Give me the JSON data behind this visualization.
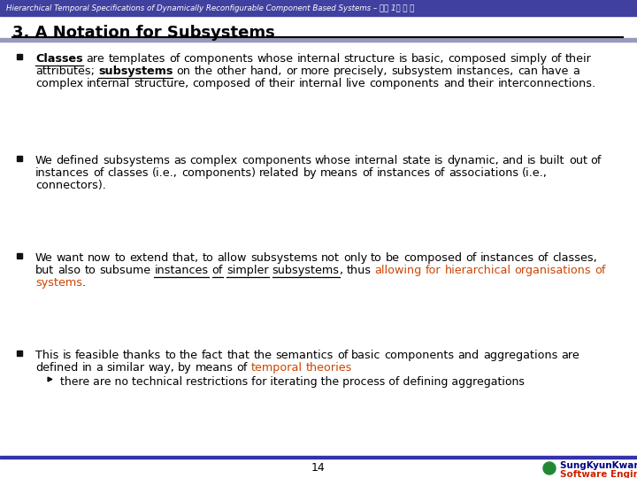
{
  "header_text": "Hierarchical Temporal Specifications of Dynamically Reconfigurable Component Based Systems – 석사 1기 헀 석",
  "header_bg": "#4040a0",
  "header_text_color": "#ffffff",
  "title": "3. A Notation for Subsystems",
  "bg_color": "#ffffff",
  "footer_page": "14",
  "footer_univ": "SungKyunKwan University",
  "footer_lab": "Software Engineering Lab.",
  "footer_univ_color": "#000080",
  "footer_lab_color": "#cc2200",
  "bullet1_parts": [
    {
      "text": "Classes",
      "bold": true,
      "underline": true,
      "color": "#000000"
    },
    {
      "text": " are templates of components whose internal structure is basic, composed simply of their attributes; ",
      "bold": false,
      "underline": false,
      "color": "#000000"
    },
    {
      "text": "subsystems",
      "bold": true,
      "underline": true,
      "color": "#000000"
    },
    {
      "text": " on the other hand, or more precisely, subsystem instances, can have a complex internal structure, composed of their internal live components and their interconnections.",
      "bold": false,
      "underline": false,
      "color": "#000000"
    }
  ],
  "bullet2_parts": [
    {
      "text": "We defined subsystems as complex components whose internal state is dynamic, and is built out of instances of classes (i.e., components) related by means of instances of associations (i.e., connectors).",
      "bold": false,
      "underline": false,
      "color": "#000000"
    }
  ],
  "bullet3_parts": [
    {
      "text": "We want now to extend that, to allow subsystems not only to be composed of instances of classes, but also to subsume ",
      "bold": false,
      "underline": false,
      "color": "#000000"
    },
    {
      "text": "instances of simpler subsystems",
      "bold": false,
      "underline": true,
      "color": "#000000"
    },
    {
      "text": ", thus ",
      "bold": false,
      "underline": false,
      "color": "#000000"
    },
    {
      "text": "allowing for hierarchical organisations of systems",
      "bold": false,
      "underline": false,
      "color": "#cc4400"
    },
    {
      "text": ".",
      "bold": false,
      "underline": false,
      "color": "#000000"
    }
  ],
  "bullet4_parts": [
    {
      "text": "This is feasible thanks to the fact that the semantics of basic components and aggregations are defined in a similar way, by means of ",
      "bold": false,
      "underline": false,
      "color": "#000000"
    },
    {
      "text": "temporal theories",
      "bold": false,
      "underline": false,
      "color": "#cc4400"
    }
  ],
  "sub_bullet1": "there are no technical restrictions for iterating the process of defining aggregations"
}
